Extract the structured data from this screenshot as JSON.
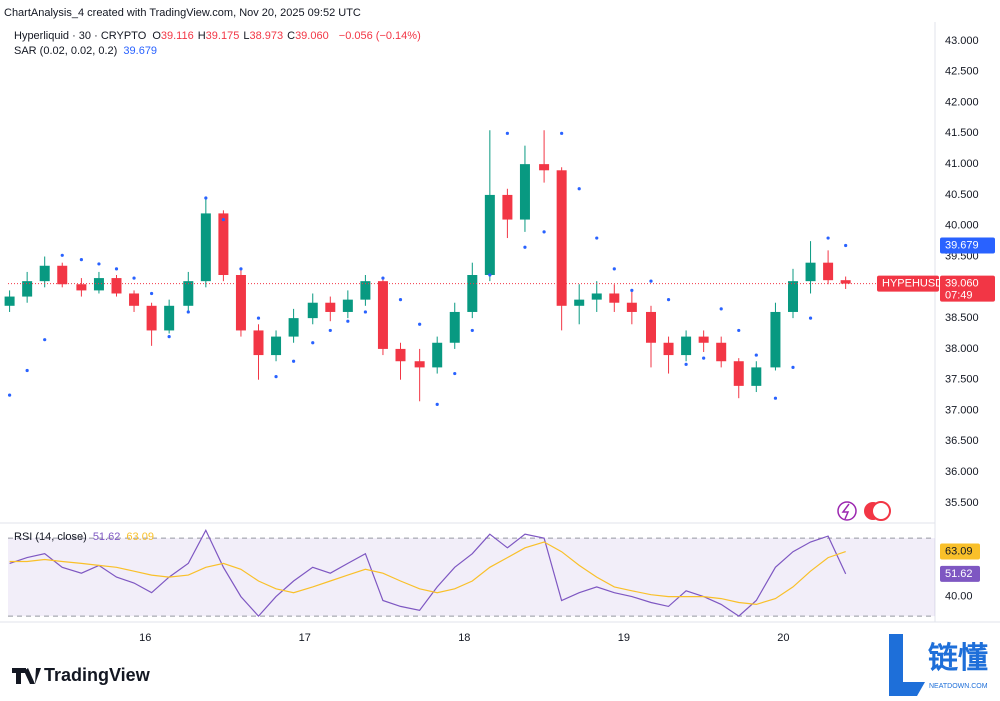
{
  "header": {
    "credit": "ChartAnalysis_4 created with TradingView.com, Nov 20, 2025 09:52 UTC"
  },
  "legend": {
    "symbol": "Hyperliquid · 30 · CRYPTO",
    "ohlc": [
      {
        "key": "O",
        "value": "39.116"
      },
      {
        "key": "H",
        "value": "39.175"
      },
      {
        "key": "L",
        "value": "38.973"
      },
      {
        "key": "C",
        "value": "39.060"
      }
    ],
    "change": "−0.056 (−0.14%)"
  },
  "chart_data": [
    {
      "type": "candlestick",
      "x": [
        15.15,
        15.26,
        15.37,
        15.48,
        15.6,
        15.71,
        15.82,
        15.93,
        16.04,
        16.15,
        16.27,
        16.38,
        16.49,
        16.6,
        16.71,
        16.82,
        16.93,
        17.05,
        17.16,
        17.27,
        17.38,
        17.49,
        17.6,
        17.72,
        17.83,
        17.94,
        18.05,
        18.16,
        18.27,
        18.38,
        18.5,
        18.61,
        18.72,
        18.83,
        18.94,
        19.05,
        19.17,
        19.28,
        19.39,
        19.5,
        19.61,
        19.72,
        19.83,
        19.95,
        20.06,
        20.17,
        20.28,
        20.39
      ],
      "open": [
        38.7,
        38.85,
        39.1,
        39.35,
        39.05,
        38.95,
        39.15,
        38.9,
        38.7,
        38.3,
        38.7,
        39.1,
        40.2,
        39.2,
        38.3,
        37.9,
        38.2,
        38.5,
        38.75,
        38.6,
        38.8,
        39.1,
        38.0,
        37.8,
        37.7,
        38.1,
        38.6,
        39.2,
        40.5,
        40.1,
        41.0,
        40.9,
        38.7,
        38.8,
        38.9,
        38.75,
        38.6,
        38.1,
        37.9,
        38.2,
        38.1,
        37.8,
        37.4,
        37.7,
        38.6,
        39.1,
        39.4,
        39.116
      ],
      "high": [
        38.95,
        39.25,
        39.5,
        39.4,
        39.15,
        39.25,
        39.2,
        38.95,
        38.75,
        38.8,
        39.25,
        40.45,
        40.25,
        39.3,
        38.4,
        38.3,
        38.65,
        38.9,
        38.85,
        38.95,
        39.2,
        39.15,
        38.1,
        38.0,
        38.2,
        38.75,
        39.4,
        41.55,
        40.6,
        41.3,
        41.55,
        40.95,
        39.05,
        39.1,
        39.05,
        38.95,
        38.7,
        38.2,
        38.3,
        38.3,
        38.2,
        37.85,
        37.8,
        38.75,
        39.3,
        39.75,
        39.6,
        39.175
      ],
      "low": [
        38.6,
        38.75,
        39.0,
        39.0,
        38.85,
        38.9,
        38.85,
        38.6,
        38.05,
        38.25,
        38.6,
        39.0,
        39.1,
        38.2,
        37.5,
        37.8,
        38.1,
        38.4,
        38.45,
        38.5,
        38.7,
        37.9,
        37.5,
        37.15,
        37.6,
        38.0,
        38.5,
        39.1,
        39.8,
        39.9,
        40.7,
        38.3,
        38.4,
        38.6,
        38.6,
        38.4,
        37.7,
        37.6,
        37.8,
        37.95,
        37.7,
        37.2,
        37.3,
        37.65,
        38.5,
        38.9,
        39.05,
        38.973
      ],
      "close": [
        38.85,
        39.1,
        39.35,
        39.05,
        38.95,
        39.15,
        38.9,
        38.7,
        38.3,
        38.7,
        39.1,
        40.2,
        39.2,
        38.3,
        37.9,
        38.2,
        38.5,
        38.75,
        38.6,
        38.8,
        39.1,
        38.0,
        37.8,
        37.7,
        38.1,
        38.6,
        39.2,
        40.5,
        40.1,
        41.0,
        40.9,
        38.7,
        38.8,
        38.9,
        38.75,
        38.6,
        38.1,
        37.9,
        38.2,
        38.1,
        37.8,
        37.4,
        37.7,
        38.6,
        39.1,
        39.4,
        39.116,
        39.06
      ],
      "up_color": "#089981",
      "down_color": "#f23645",
      "overlays": [
        {
          "name": "SAR (0.02, 0.02, 0.2)",
          "color": "#2962ff",
          "value_label": "39.679",
          "values": [
            37.25,
            37.65,
            38.15,
            39.52,
            39.45,
            39.38,
            39.3,
            39.15,
            38.9,
            38.2,
            38.6,
            40.45,
            40.1,
            39.3,
            38.5,
            37.55,
            37.8,
            38.1,
            38.3,
            38.45,
            38.6,
            39.15,
            38.8,
            38.4,
            37.1,
            37.6,
            38.3,
            39.2,
            41.5,
            39.65,
            39.9,
            41.5,
            40.6,
            39.8,
            39.3,
            38.95,
            39.1,
            38.8,
            37.75,
            37.85,
            38.65,
            38.3,
            37.9,
            37.2,
            37.7,
            38.5,
            39.8,
            39.679
          ]
        }
      ],
      "last_price": {
        "symbol": "HYPEHUSD",
        "label": "39.060",
        "countdown": "07:49",
        "value": 39.06
      },
      "xlim": [
        15.14,
        20.95
      ],
      "xticks": [
        16,
        17,
        18,
        19,
        20
      ],
      "ylim": [
        35.19,
        43.21
      ],
      "yticks": [
        {
          "value": 35.5,
          "label": "35.500"
        },
        {
          "value": 36,
          "label": "36.000"
        },
        {
          "value": 36.5,
          "label": "36.500"
        },
        {
          "value": 37,
          "label": "37.000"
        },
        {
          "value": 37.5,
          "label": "37.500"
        },
        {
          "value": 38,
          "label": "38.000"
        },
        {
          "value": 38.5,
          "label": "38.500"
        },
        {
          "value": 39,
          "label": "39.000"
        },
        {
          "value": 39.5,
          "label": "39.500"
        },
        {
          "value": 40,
          "label": "40.000"
        },
        {
          "value": 40.5,
          "label": "40.500"
        },
        {
          "value": 41,
          "label": "41.000"
        },
        {
          "value": 41.5,
          "label": "41.500"
        },
        {
          "value": 42,
          "label": "42.000"
        },
        {
          "value": 42.5,
          "label": "42.500"
        },
        {
          "value": 43,
          "label": "43.000"
        }
      ],
      "grid": false
    },
    {
      "type": "line",
      "title": "RSI (14, close)",
      "series": [
        {
          "color": "#7e57c2",
          "value_label": "51.62",
          "values": [
            57,
            60,
            62,
            55,
            52,
            56,
            50,
            47,
            42,
            50,
            57,
            74,
            55,
            40,
            30,
            40,
            48,
            55,
            52,
            57,
            62,
            38,
            35,
            33,
            45,
            55,
            62,
            72,
            65,
            72,
            70,
            38,
            42,
            45,
            42,
            40,
            37,
            35,
            43,
            40,
            36,
            30,
            38,
            55,
            63,
            68,
            71,
            51.62
          ]
        },
        {
          "color": "#f9c02a",
          "value_label": "63.09",
          "values": [
            58,
            58,
            59,
            58,
            57,
            56,
            55,
            53,
            51,
            50,
            51,
            55,
            57,
            54,
            48,
            44,
            42,
            45,
            48,
            51,
            54,
            52,
            48,
            44,
            42,
            44,
            48,
            55,
            60,
            65,
            68,
            63,
            56,
            50,
            45,
            43,
            41,
            40,
            40,
            40,
            39,
            37,
            36,
            39,
            45,
            53,
            60,
            63.09
          ]
        }
      ],
      "bands": [
        30,
        70
      ],
      "ylim": [
        27.5,
        76.7
      ],
      "yticks": [
        {
          "value": 40,
          "label": "40.00"
        }
      ]
    }
  ],
  "footer": {
    "logo": "TradingView",
    "watermark": "链懂",
    "watermark_site": "NEATDOWN.COM"
  }
}
